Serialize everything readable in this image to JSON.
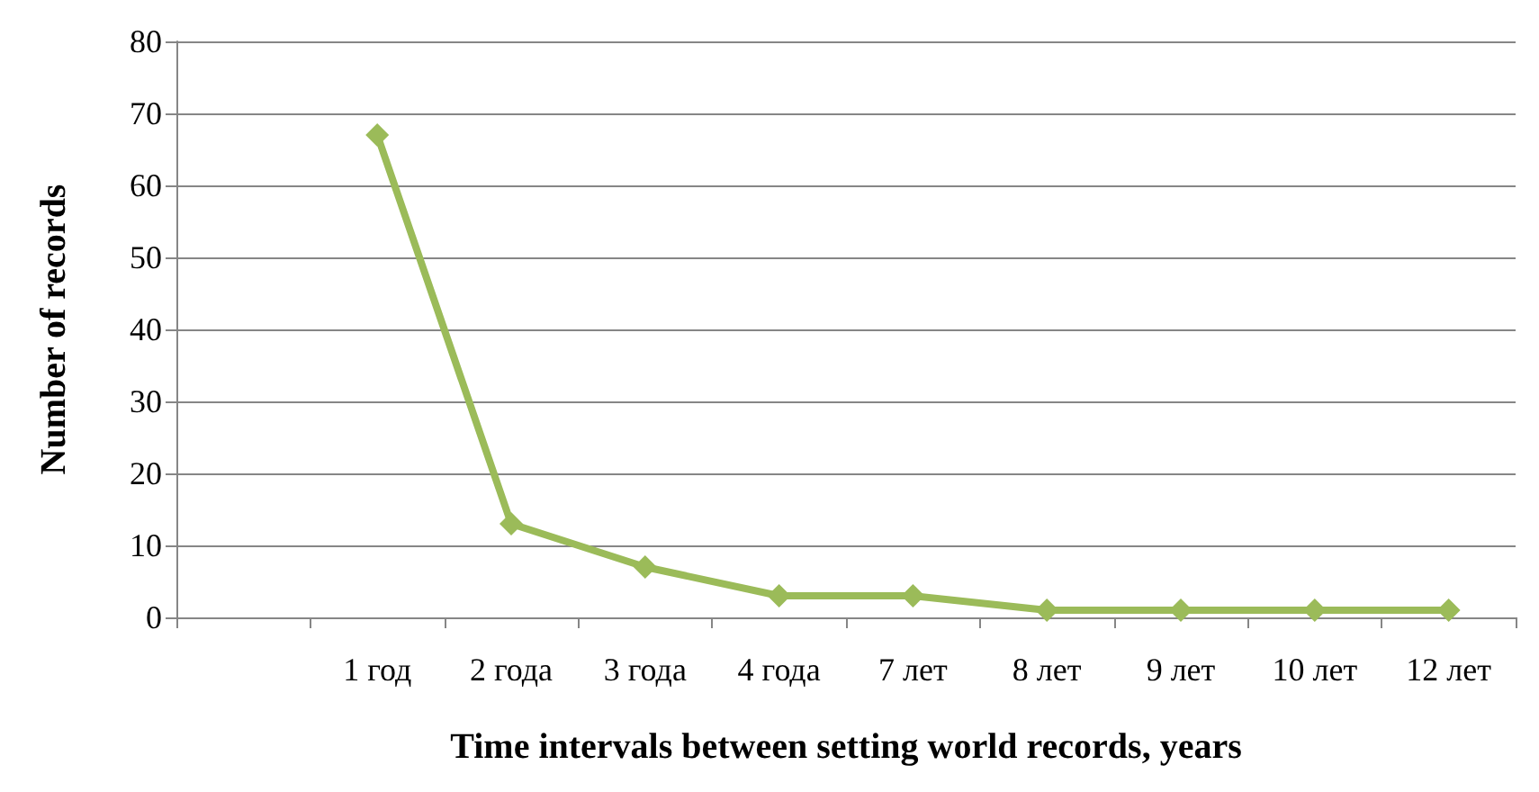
{
  "chart_data": {
    "type": "line",
    "xlabel": "Time intervals between setting world records, years",
    "ylabel": "Number of records",
    "categories": [
      null,
      "1 год",
      "2 года",
      "3 года",
      "4 года",
      "7 лет",
      "8 лет",
      "9 лет",
      "10 лет",
      "12 лет"
    ],
    "series": [
      {
        "color": "#9bbb59",
        "values": [
          null,
          67,
          13,
          7,
          3,
          3,
          1,
          1,
          1,
          1
        ]
      }
    ],
    "ylim": [
      0,
      80
    ],
    "yticks": [
      0,
      10,
      20,
      30,
      40,
      50,
      60,
      70,
      80
    ],
    "grid": "y",
    "marker": "diamond",
    "line_style": "solid"
  }
}
